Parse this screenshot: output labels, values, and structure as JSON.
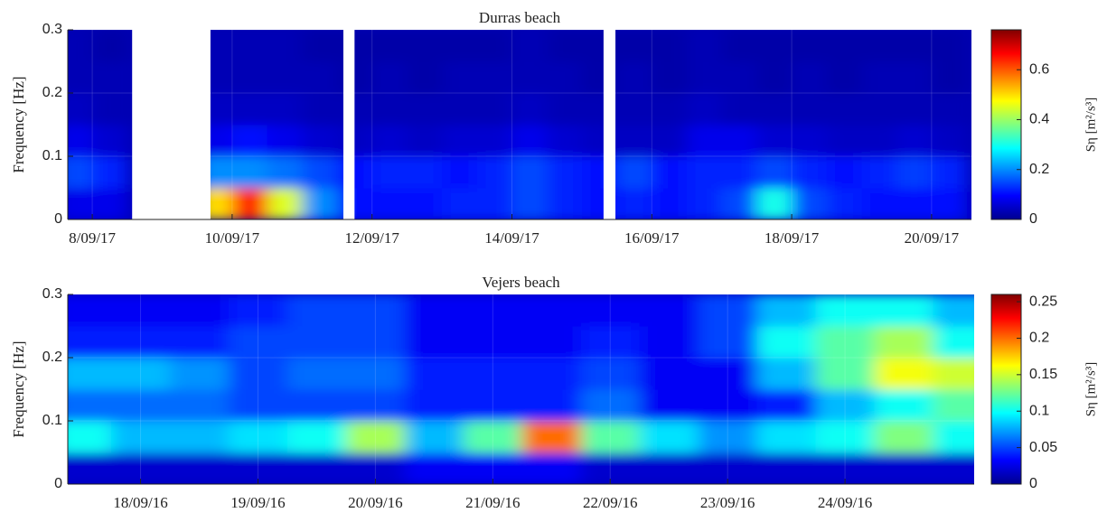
{
  "chart_data": [
    {
      "type": "heatmap",
      "title": "Durras beach",
      "ylabel": "Frequency [Hz]",
      "colormap": "jet",
      "grid": true,
      "xlim": [
        7.65,
        20.57
      ],
      "ylim": [
        0,
        0.3
      ],
      "xticks": [
        {
          "value": 8,
          "label": "8/09/17"
        },
        {
          "value": 10,
          "label": "10/09/17"
        },
        {
          "value": 12,
          "label": "12/09/17"
        },
        {
          "value": 14,
          "label": "14/09/17"
        },
        {
          "value": 16,
          "label": "16/09/17"
        },
        {
          "value": 18,
          "label": "18/09/17"
        },
        {
          "value": 20,
          "label": "20/09/17"
        }
      ],
      "yticks": [
        0,
        0.1,
        0.2,
        0.3
      ],
      "x_edges": [
        7.5,
        8,
        8.5,
        9,
        9.5,
        10,
        10.5,
        11,
        11.5,
        12,
        12.5,
        13,
        13.5,
        14,
        14.5,
        15,
        15.5,
        16,
        16.5,
        17,
        17.5,
        18,
        18.5,
        19,
        19.5,
        20,
        20.5
      ],
      "y_edges": [
        0,
        0.05,
        0.1,
        0.15,
        0.2,
        0.25,
        0.3
      ],
      "z": [
        [
          0.08,
          0.08,
          null,
          null,
          0.5,
          0.65,
          0.45,
          0.2,
          0.1,
          0.1,
          0.1,
          0.12,
          0.12,
          0.15,
          0.12,
          0.1,
          0.12,
          0.1,
          0.12,
          0.15,
          0.3,
          0.15,
          0.12,
          0.1,
          0.1,
          0.1
        ],
        [
          0.15,
          0.12,
          null,
          null,
          0.2,
          0.2,
          0.18,
          0.15,
          0.1,
          0.12,
          0.12,
          0.1,
          0.12,
          0.15,
          0.12,
          0.1,
          0.15,
          0.1,
          0.12,
          0.12,
          0.15,
          0.12,
          0.1,
          0.12,
          0.14,
          0.12
        ],
        [
          0.08,
          0.06,
          null,
          null,
          0.08,
          0.1,
          0.08,
          0.06,
          0.05,
          0.06,
          0.05,
          0.06,
          0.06,
          0.08,
          0.06,
          0.05,
          0.05,
          0.05,
          0.08,
          0.08,
          0.06,
          0.06,
          0.05,
          0.05,
          0.06,
          0.05
        ],
        [
          0.05,
          0.04,
          null,
          null,
          0.05,
          0.05,
          0.05,
          0.04,
          0.04,
          0.04,
          0.04,
          0.04,
          0.04,
          0.05,
          0.04,
          0.04,
          0.04,
          0.04,
          0.05,
          0.04,
          0.04,
          0.04,
          0.04,
          0.04,
          0.04,
          0.04
        ],
        [
          0.04,
          0.04,
          null,
          null,
          0.04,
          0.04,
          0.04,
          0.04,
          0.03,
          0.04,
          0.03,
          0.04,
          0.04,
          0.04,
          0.04,
          0.03,
          0.04,
          0.03,
          0.04,
          0.04,
          0.03,
          0.04,
          0.03,
          0.04,
          0.04,
          0.03
        ],
        [
          0.04,
          0.03,
          null,
          null,
          0.04,
          0.04,
          0.04,
          0.03,
          0.03,
          0.03,
          0.03,
          0.03,
          0.03,
          0.04,
          0.03,
          0.03,
          0.03,
          0.03,
          0.04,
          0.03,
          0.03,
          0.03,
          0.03,
          0.03,
          0.03,
          0.03
        ]
      ],
      "gaps": [
        [
          8.57,
          9.69
        ],
        [
          11.59,
          11.75
        ],
        [
          15.31,
          15.48
        ]
      ],
      "colorbar": {
        "label": "Sη [m²/s³]",
        "clim": [
          0,
          0.76
        ],
        "ticks": [
          0,
          0.2,
          0.4,
          0.6
        ]
      }
    },
    {
      "type": "heatmap",
      "title": "Vejers beach",
      "ylabel": "Frequency [Hz]",
      "colormap": "jet",
      "grid": true,
      "xlim": [
        17.38,
        25.1
      ],
      "ylim": [
        0,
        0.3
      ],
      "xticks": [
        {
          "value": 18,
          "label": "18/09/16"
        },
        {
          "value": 19,
          "label": "19/09/16"
        },
        {
          "value": 20,
          "label": "20/09/16"
        },
        {
          "value": 21,
          "label": "21/09/16"
        },
        {
          "value": 22,
          "label": "22/09/16"
        },
        {
          "value": 23,
          "label": "23/09/16"
        },
        {
          "value": 24,
          "label": "24/09/16"
        }
      ],
      "yticks": [
        0,
        0.1,
        0.2,
        0.3
      ],
      "x_edges": [
        17.25,
        17.75,
        18.25,
        18.75,
        19.25,
        19.75,
        20.25,
        20.75,
        21.25,
        21.75,
        22.25,
        22.75,
        23.25,
        23.75,
        24.25,
        24.75,
        25.25
      ],
      "y_edges": [
        0,
        0.05,
        0.1,
        0.15,
        0.2,
        0.25,
        0.3
      ],
      "z": [
        [
          0.02,
          0.02,
          0.02,
          0.02,
          0.02,
          0.02,
          0.03,
          0.03,
          0.03,
          0.02,
          0.02,
          0.02,
          0.02,
          0.02,
          0.02,
          0.02
        ],
        [
          0.1,
          0.08,
          0.08,
          0.09,
          0.1,
          0.14,
          0.08,
          0.12,
          0.2,
          0.12,
          0.09,
          0.07,
          0.09,
          0.1,
          0.13,
          0.1
        ],
        [
          0.06,
          0.06,
          0.06,
          0.05,
          0.05,
          0.05,
          0.04,
          0.04,
          0.04,
          0.06,
          0.03,
          0.03,
          0.04,
          0.08,
          0.1,
          0.12
        ],
        [
          0.08,
          0.08,
          0.07,
          0.05,
          0.06,
          0.06,
          0.04,
          0.04,
          0.04,
          0.05,
          0.03,
          0.03,
          0.08,
          0.12,
          0.16,
          0.15
        ],
        [
          0.04,
          0.04,
          0.04,
          0.05,
          0.05,
          0.05,
          0.03,
          0.03,
          0.03,
          0.04,
          0.03,
          0.05,
          0.1,
          0.12,
          0.14,
          0.1
        ],
        [
          0.03,
          0.03,
          0.03,
          0.04,
          0.05,
          0.05,
          0.03,
          0.03,
          0.03,
          0.03,
          0.03,
          0.05,
          0.08,
          0.1,
          0.1,
          0.08
        ]
      ],
      "colorbar": {
        "label": "Sη [m²/s³]",
        "clim": [
          0,
          0.26
        ],
        "ticks": [
          0,
          0.05,
          0.1,
          0.15,
          0.2,
          0.25
        ]
      }
    }
  ]
}
